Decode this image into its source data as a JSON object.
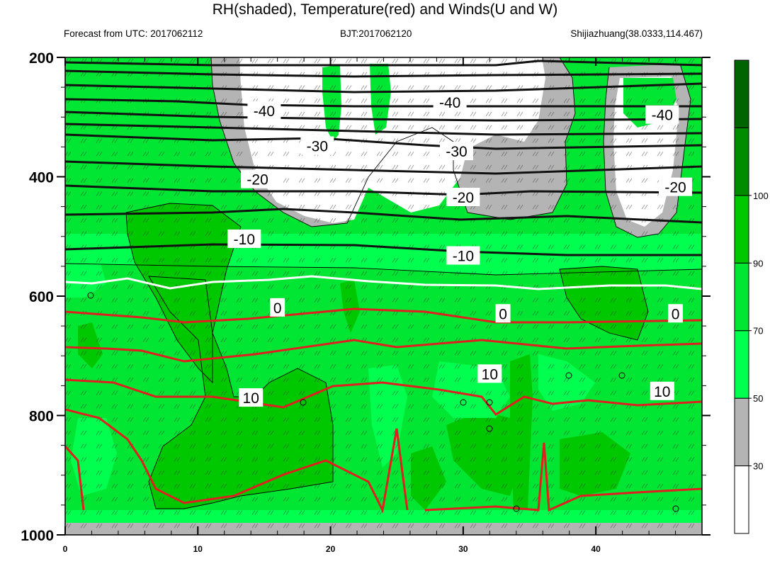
{
  "chart_data": {
    "type": "contour",
    "title": "RH(shaded), Temperature(red) and Winds(U and W)",
    "subtitle_left": "Forecast from UTC: 2017062112",
    "subtitle_center": "BJT:2017062120",
    "subtitle_right": "Shijiazhuang(38.0333,114.467)",
    "xlabel": "",
    "ylabel": "",
    "xlim": [
      0,
      48
    ],
    "ylim": [
      1000,
      200
    ],
    "x_ticks": [
      "0",
      "10",
      "20",
      "30",
      "40"
    ],
    "y_ticks": [
      "200",
      "400",
      "600",
      "800",
      "1000"
    ],
    "colorbar": {
      "levels": [
        "30",
        "50",
        "70",
        "90",
        "100"
      ],
      "colors": [
        "#ffffff",
        "#b4b4b4",
        "#00ff4f",
        "#00e632",
        "#00c800",
        "#008c00",
        "#006400"
      ]
    },
    "temperature_contours": [
      {
        "level": "-40",
        "labels": [
          {
            "x": 15,
            "p": 290
          },
          {
            "x": 29,
            "p": 276
          },
          {
            "x": 45,
            "p": 297
          }
        ]
      },
      {
        "level": "-30",
        "labels": [
          {
            "x": 19,
            "p": 349
          },
          {
            "x": 29.5,
            "p": 358
          }
        ]
      },
      {
        "level": "-20",
        "labels": [
          {
            "x": 14.5,
            "p": 405
          },
          {
            "x": 30,
            "p": 435
          },
          {
            "x": 46,
            "p": 418
          }
        ]
      },
      {
        "level": "-10",
        "labels": [
          {
            "x": 13.5,
            "p": 505
          },
          {
            "x": 30,
            "p": 533
          }
        ]
      },
      {
        "level": "0",
        "labels": [
          {
            "x": 16,
            "p": 620
          },
          {
            "x": 33,
            "p": 630
          },
          {
            "x": 46,
            "p": 630
          }
        ]
      },
      {
        "level": "10",
        "labels": [
          {
            "x": 14,
            "p": 771
          },
          {
            "x": 32,
            "p": 731
          },
          {
            "x": 45,
            "p": 760
          }
        ]
      }
    ]
  }
}
